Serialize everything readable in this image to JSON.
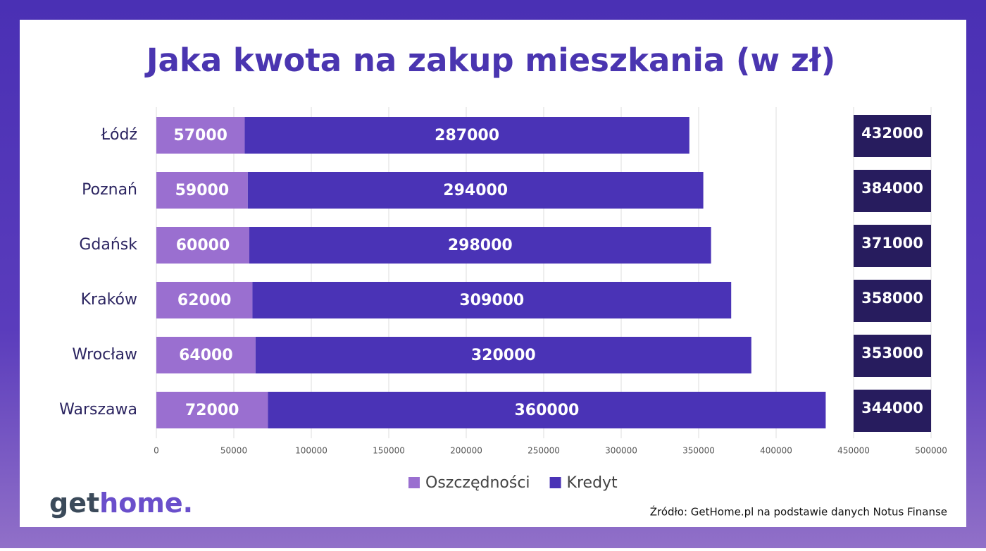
{
  "chart_data": {
    "type": "stacked_barh",
    "title": "Jaka kwota na zakup mieszkania (w zł)",
    "categories": [
      "Łódź",
      "Poznań",
      "Gdańsk",
      "Kraków",
      "Wrocław",
      "Warszawa"
    ],
    "series": [
      {
        "name": "Oszczędności",
        "color": "#9a6fd0",
        "values": [
          57000,
          59000,
          60000,
          62000,
          64000,
          72000
        ]
      },
      {
        "name": "Kredyt",
        "color": "#4a33b6",
        "values": [
          287000,
          294000,
          298000,
          309000,
          320000,
          360000
        ]
      }
    ],
    "side_labels": [
      "432000",
      "384000",
      "371000",
      "358000",
      "353000",
      "344000"
    ],
    "side_color": "#271c5e",
    "xlim": [
      0,
      500000
    ],
    "xticks": [
      0,
      50000,
      100000,
      150000,
      200000,
      250000,
      300000,
      350000,
      400000,
      450000,
      500000
    ],
    "grid": true,
    "legend": "bottom",
    "logo": [
      "get",
      "home."
    ],
    "source": "Źródło: GetHome.pl na podstawie danych Notus Finanse"
  }
}
